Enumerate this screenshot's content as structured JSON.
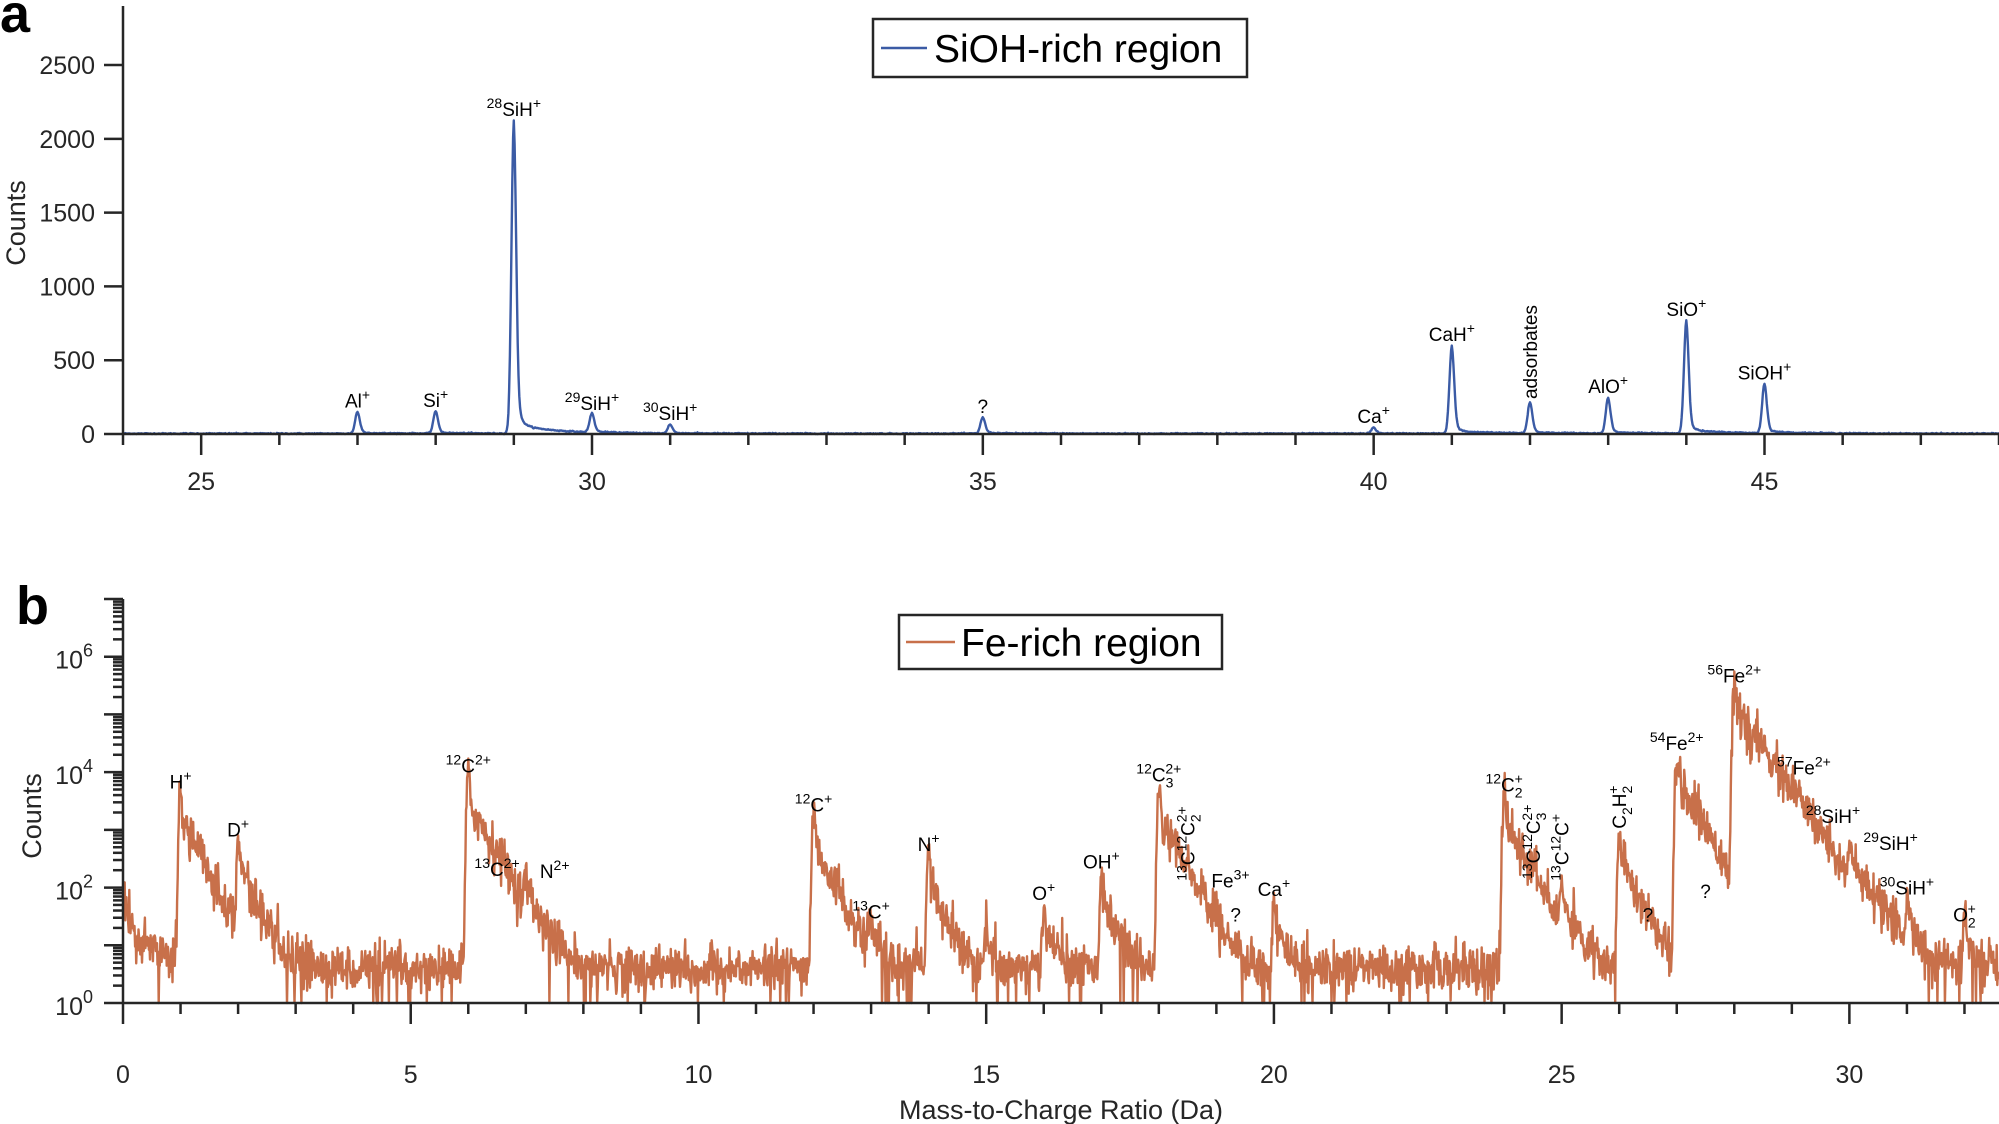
{
  "chart_data": [
    {
      "type": "line",
      "panel_label": "a",
      "legend": "SiOH-rich region",
      "legend_position": "top-center",
      "color": "#3b5ba5",
      "xlabel": "",
      "ylabel": "Counts",
      "yscale": "linear",
      "xlim": [
        24,
        48
      ],
      "ylim": [
        0,
        2900
      ],
      "xticks": [
        25,
        30,
        35,
        40,
        45
      ],
      "xtick_labels": [
        "25",
        "30",
        "35",
        "40",
        "45"
      ],
      "yticks": [
        0,
        500,
        1000,
        1500,
        2000,
        2500
      ],
      "ytick_labels": [
        "0",
        "500",
        "1000",
        "1500",
        "2000",
        "2500"
      ],
      "peaks": [
        {
          "x": 27,
          "y": 147,
          "label": {
            "iso": "",
            "base": "Al",
            "sub": "",
            "charge": "+",
            "rotated": false
          }
        },
        {
          "x": 28,
          "y": 150,
          "label": {
            "iso": "",
            "base": "Si",
            "sub": "",
            "charge": "+",
            "rotated": false
          }
        },
        {
          "x": 29,
          "y": 2120,
          "label": {
            "iso": "28",
            "base": "SiH",
            "sub": "",
            "charge": "+",
            "rotated": false
          }
        },
        {
          "x": 30,
          "y": 130,
          "label": {
            "iso": "29",
            "base": "SiH",
            "sub": "",
            "charge": "+",
            "rotated": false
          }
        },
        {
          "x": 31,
          "y": 60,
          "label": {
            "iso": "30",
            "base": "SiH",
            "sub": "",
            "charge": "+",
            "rotated": false
          }
        },
        {
          "x": 35,
          "y": 110,
          "label": {
            "iso": "",
            "base": "?",
            "sub": "",
            "charge": "",
            "rotated": false
          }
        },
        {
          "x": 40,
          "y": 40,
          "label": {
            "iso": "",
            "base": "Ca",
            "sub": "",
            "charge": "+",
            "rotated": false
          }
        },
        {
          "x": 41,
          "y": 595,
          "label": {
            "iso": "",
            "base": "CaH",
            "sub": "",
            "charge": "+",
            "rotated": false
          }
        },
        {
          "x": 42,
          "y": 210,
          "label": {
            "iso": "",
            "base": "adsorbates",
            "sub": "",
            "charge": "",
            "rotated": true
          }
        },
        {
          "x": 43,
          "y": 244,
          "label": {
            "iso": "",
            "base": "AlO",
            "sub": "",
            "charge": "+",
            "rotated": false
          }
        },
        {
          "x": 44,
          "y": 765,
          "label": {
            "iso": "",
            "base": "SiO",
            "sub": "",
            "charge": "+",
            "rotated": false
          }
        },
        {
          "x": 45,
          "y": 335,
          "label": {
            "iso": "",
            "base": "SiOH",
            "sub": "",
            "charge": "+",
            "rotated": false
          }
        }
      ]
    },
    {
      "type": "line",
      "panel_label": "b",
      "legend": "Fe-rich region",
      "legend_position": "top-center",
      "color": "#c8704a",
      "xlabel": "Mass-to-Charge Ratio (Da)",
      "ylabel": "Counts",
      "yscale": "log",
      "xlim": [
        0,
        32.6
      ],
      "ylim": [
        1,
        10000000
      ],
      "xticks": [
        0,
        5,
        10,
        15,
        20,
        25,
        30
      ],
      "xtick_labels": [
        "0",
        "5",
        "10",
        "15",
        "20",
        "25",
        "30"
      ],
      "yticks": [
        1,
        100,
        10000,
        1000000
      ],
      "ytick_labels": [
        {
          "base": "10",
          "exp": "0"
        },
        {
          "base": "10",
          "exp": "2"
        },
        {
          "base": "10",
          "exp": "4"
        },
        {
          "base": "10",
          "exp": "6"
        }
      ],
      "peaks": [
        {
          "x": 1,
          "y": 4300,
          "label": {
            "iso": "",
            "base": "H",
            "sub": "",
            "charge": "+",
            "rotated": false
          }
        },
        {
          "x": 2,
          "y": 630,
          "label": {
            "iso": "",
            "base": "D",
            "sub": "",
            "charge": "+",
            "rotated": false
          }
        },
        {
          "x": 6,
          "y": 8000,
          "label": {
            "iso": "12",
            "base": "C",
            "sub": "",
            "charge": "2+",
            "rotated": false
          }
        },
        {
          "x": 6.5,
          "y": 130,
          "label": {
            "iso": "13",
            "base": "C",
            "sub": "",
            "charge": "2+",
            "rotated": false
          }
        },
        {
          "x": 7,
          "y": 120,
          "label": {
            "iso": "",
            "base": "N",
            "sub": "",
            "charge": "2+",
            "rotated": false,
            "offset": "right"
          }
        },
        {
          "x": 12,
          "y": 1700,
          "label": {
            "iso": "12",
            "base": "C",
            "sub": "",
            "charge": "+",
            "rotated": false
          }
        },
        {
          "x": 13,
          "y": 24,
          "label": {
            "iso": "13",
            "base": "C",
            "sub": "",
            "charge": "+",
            "rotated": false
          }
        },
        {
          "x": 14,
          "y": 350,
          "label": {
            "iso": "",
            "base": "N",
            "sub": "",
            "charge": "+",
            "rotated": false
          }
        },
        {
          "x": 15,
          "y": 15
        },
        {
          "x": 16,
          "y": 50,
          "label": {
            "iso": "",
            "base": "O",
            "sub": "",
            "charge": "+",
            "rotated": false
          }
        },
        {
          "x": 17,
          "y": 175,
          "label": {
            "iso": "",
            "base": "OH",
            "sub": "",
            "charge": "+",
            "rotated": false
          }
        },
        {
          "x": 18,
          "y": 4100,
          "label": {
            "iso": "12",
            "base": "C",
            "sub": "3",
            "charge": "2+",
            "rotated": false
          }
        },
        {
          "x": 18.5,
          "y": 112,
          "label": {
            "iso": "13",
            "base": "C",
            "mid_iso": "12",
            "mid_base": "C",
            "sub": "2",
            "charge": "2+",
            "rotated": true
          }
        },
        {
          "x": 18.67,
          "y": 40,
          "label": {
            "iso": "",
            "base": "Fe",
            "sub": "",
            "charge": "3+",
            "rotated": false,
            "offset": "right"
          }
        },
        {
          "x": 19,
          "y": 21,
          "label": {
            "iso": "",
            "base": "?",
            "sub": "",
            "charge": "",
            "rotated": false,
            "offset": "right"
          }
        },
        {
          "x": 20,
          "y": 58,
          "label": {
            "iso": "",
            "base": "Ca",
            "sub": "",
            "charge": "+",
            "rotated": false
          }
        },
        {
          "x": 24,
          "y": 3800,
          "label": {
            "iso": "12",
            "base": "C",
            "sub": "2",
            "charge": "+",
            "rotated": false
          }
        },
        {
          "x": 24.5,
          "y": 120,
          "label": {
            "iso": "13",
            "base": "C",
            "mid_iso": "12",
            "mid_base": "C",
            "sub": "3",
            "charge": "2+",
            "rotated": true
          }
        },
        {
          "x": 25,
          "y": 112,
          "label": {
            "iso": "13",
            "base": "C",
            "mid_iso": "12",
            "mid_base": "C",
            "sub": "",
            "charge": "+",
            "rotated": true
          }
        },
        {
          "x": 26,
          "y": 890,
          "label": {
            "iso": "",
            "base": "C",
            "mid_iso": "",
            "mid_base": "",
            "sub": "2",
            "base2": "H",
            "sub2": "2",
            "charge": "+",
            "rotated": true
          }
        },
        {
          "x": 26.5,
          "y": 21,
          "label": {
            "iso": "",
            "base": "?",
            "sub": "",
            "charge": "",
            "rotated": false
          }
        },
        {
          "x": 27,
          "y": 20000,
          "label": {
            "iso": "54",
            "base": "Fe",
            "sub": "",
            "charge": "2+",
            "rotated": false
          }
        },
        {
          "x": 27.5,
          "y": 54,
          "label": {
            "iso": "",
            "base": "?",
            "sub": "",
            "charge": "",
            "rotated": false
          }
        },
        {
          "x": 28,
          "y": 290000,
          "label": {
            "iso": "56",
            "base": "Fe",
            "sub": "",
            "charge": "2+",
            "rotated": false
          }
        },
        {
          "x": 28.5,
          "y": 7400,
          "label": {
            "iso": "57",
            "base": "Fe",
            "sub": "",
            "charge": "2+",
            "rotated": false,
            "offset": "right"
          }
        },
        {
          "x": 29,
          "y": 1070,
          "label": {
            "iso": "28",
            "base": "SiH",
            "sub": "",
            "charge": "+",
            "rotated": false,
            "offset": "right"
          }
        },
        {
          "x": 30,
          "y": 370,
          "label": {
            "iso": "29",
            "base": "SiH",
            "sub": "",
            "charge": "+",
            "rotated": false,
            "offset": "right"
          }
        },
        {
          "x": 30.5,
          "y": 36
        },
        {
          "x": 31,
          "y": 62,
          "label": {
            "iso": "30",
            "base": "SiH",
            "sub": "",
            "charge": "+",
            "rotated": false
          }
        },
        {
          "x": 32,
          "y": 21,
          "label": {
            "iso": "",
            "base": "O",
            "sub": "2",
            "charge": "+",
            "rotated": false
          }
        }
      ]
    }
  ]
}
